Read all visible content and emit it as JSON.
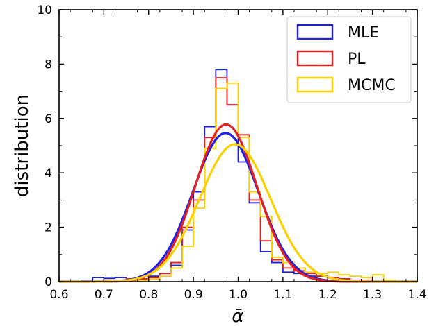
{
  "chart_data": {
    "type": "histogram",
    "xlabel": "ᾱ",
    "ylabel": "distribution",
    "xlim": [
      0.6,
      1.4
    ],
    "ylim": [
      0,
      10
    ],
    "x_ticks": [
      "0.6",
      "0.7",
      "0.8",
      "0.9",
      "1.0",
      "1.1",
      "1.2",
      "1.3",
      "1.4"
    ],
    "y_ticks": [
      "0",
      "2",
      "4",
      "6",
      "8",
      "10"
    ],
    "grid": false,
    "legend_position": "top-right",
    "bin_width": 0.025,
    "series": [
      {
        "name": "MLE",
        "color": "#1f1fe6",
        "bin_starts": [
          0.65,
          0.675,
          0.7,
          0.725,
          0.75,
          0.775,
          0.8,
          0.825,
          0.85,
          0.875,
          0.9,
          0.925,
          0.95,
          0.975,
          1.0,
          1.025,
          1.05,
          1.075,
          1.1,
          1.125,
          1.15,
          1.175,
          1.2,
          1.225,
          1.25,
          1.275
        ],
        "heights": [
          0.05,
          0.15,
          0.12,
          0.15,
          0.1,
          0.1,
          0.2,
          0.3,
          0.6,
          1.9,
          3.3,
          5.7,
          7.8,
          6.5,
          4.4,
          2.9,
          1.1,
          0.7,
          0.35,
          0.3,
          0.2,
          0.2,
          0.15,
          0.1,
          0.05,
          0.05
        ],
        "fit": {
          "mean": 0.972,
          "std": 0.073
        }
      },
      {
        "name": "PL",
        "color": "#e62020",
        "bin_starts": [
          0.7,
          0.725,
          0.75,
          0.775,
          0.8,
          0.825,
          0.85,
          0.875,
          0.9,
          0.925,
          0.95,
          0.975,
          1.0,
          1.025,
          1.05,
          1.075,
          1.1,
          1.125,
          1.15,
          1.175,
          1.2,
          1.225,
          1.25,
          1.275
        ],
        "heights": [
          0.05,
          0.05,
          0.1,
          0.1,
          0.15,
          0.3,
          0.7,
          2.0,
          3.0,
          5.3,
          7.5,
          6.5,
          5.4,
          3.0,
          1.5,
          0.8,
          0.5,
          0.4,
          0.3,
          0.2,
          0.15,
          0.1,
          0.05,
          0.05
        ],
        "fit": {
          "mean": 0.973,
          "std": 0.069
        }
      },
      {
        "name": "MCMC",
        "color": "#ffd000",
        "bin_starts": [
          0.7,
          0.725,
          0.75,
          0.775,
          0.8,
          0.825,
          0.85,
          0.875,
          0.9,
          0.925,
          0.95,
          0.975,
          1.0,
          1.025,
          1.05,
          1.075,
          1.1,
          1.125,
          1.15,
          1.175,
          1.2,
          1.225,
          1.25,
          1.275,
          1.3,
          1.325
        ],
        "heights": [
          0.05,
          0.05,
          0.05,
          0.05,
          0.1,
          0.2,
          0.5,
          1.3,
          2.7,
          4.9,
          7.1,
          7.3,
          5.3,
          3.3,
          2.4,
          0.9,
          0.7,
          0.5,
          0.35,
          0.3,
          0.35,
          0.25,
          0.2,
          0.15,
          0.25,
          0.05
        ],
        "fit": {
          "mean": 0.993,
          "std": 0.079
        }
      }
    ]
  }
}
